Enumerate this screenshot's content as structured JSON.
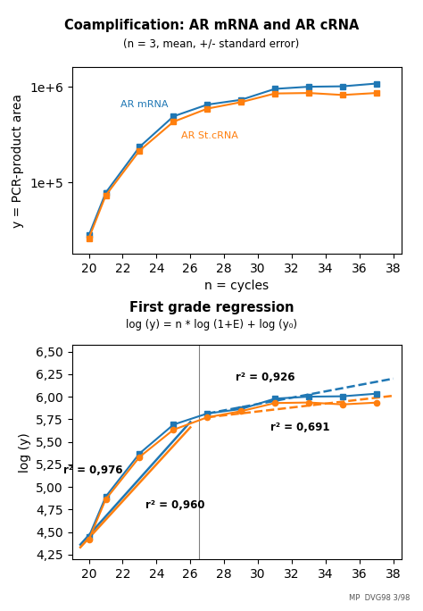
{
  "chart_data": [
    {
      "type": "line",
      "title": "Coamplification: AR mRNA and AR cRNA",
      "subtitle": "(n = 3, mean, +/- standard error)",
      "x_label": "n = cycles",
      "y_label": "y = PCR-product area",
      "log": "y",
      "xlim": [
        19.0,
        38.5
      ],
      "xticks": [
        20,
        22,
        24,
        26,
        28,
        30,
        32,
        34,
        36,
        38
      ],
      "ylim": [
        18000,
        1600000
      ],
      "yticks": [
        {
          "value": 100000,
          "label": "1e+5"
        },
        {
          "value": 1000000,
          "label": "1e+6"
        }
      ],
      "series": [
        {
          "name": "AR mRNA",
          "marker": "square",
          "line_style": "solid",
          "x": [
            20,
            21,
            23,
            25,
            27,
            29,
            31,
            33,
            35,
            37
          ],
          "values": [
            28000,
            78000,
            235000,
            490000,
            650000,
            730000,
            950000,
            1000000,
            1010000,
            1080000
          ],
          "errors": [
            1500,
            4000,
            12000,
            18000,
            22000,
            25000,
            30000,
            28000,
            22000,
            25000
          ]
        },
        {
          "name": "AR St.cRNA",
          "marker": "square",
          "line_style": "solid",
          "x": [
            20,
            21,
            23,
            25,
            27,
            29,
            31,
            33,
            35,
            37
          ],
          "values": [
            26000,
            73000,
            215000,
            430000,
            590000,
            690000,
            850000,
            860000,
            820000,
            860000
          ],
          "errors": [
            1200,
            4000,
            10000,
            15000,
            18000,
            22000,
            28000,
            25000,
            20000,
            22000
          ]
        }
      ]
    },
    {
      "type": "line",
      "title": "First grade regression",
      "subtitle": "log (y) = n * log (1+E) + log (y₀)",
      "y_label": "log (y)",
      "note": "MP  DVG98 3/98",
      "xlim": [
        19.0,
        38.5
      ],
      "xticks": [
        20,
        22,
        24,
        26,
        28,
        30,
        32,
        34,
        36,
        38
      ],
      "ylim": [
        4.2,
        6.57
      ],
      "yticks": [
        {
          "value": 4.25,
          "label": "4,25"
        },
        {
          "value": 4.5,
          "label": "4,50"
        },
        {
          "value": 4.75,
          "label": "4,75"
        },
        {
          "value": 5.0,
          "label": "5,00"
        },
        {
          "value": 5.25,
          "label": "5,25"
        },
        {
          "value": 5.5,
          "label": "5,50"
        },
        {
          "value": 5.75,
          "label": "5,75"
        },
        {
          "value": 6.0,
          "label": "6,00"
        },
        {
          "value": 6.25,
          "label": "6,25"
        },
        {
          "value": 6.5,
          "label": "6,50"
        }
      ],
      "vline": 26.5,
      "series": [
        {
          "marker": "square",
          "line_style": "solid",
          "x": [
            20,
            21,
            23,
            25,
            27,
            29,
            31,
            33,
            35,
            37
          ],
          "values": [
            4.447,
            4.892,
            5.371,
            5.69,
            5.813,
            5.863,
            5.978,
            6.0,
            6.004,
            6.033
          ]
        },
        {
          "marker": "circle",
          "line_style": "solid",
          "x": [
            20,
            21,
            23,
            25,
            27,
            29,
            31,
            33,
            35,
            37
          ],
          "values": [
            4.415,
            4.863,
            5.332,
            5.633,
            5.771,
            5.839,
            5.929,
            5.935,
            5.914,
            5.934
          ]
        },
        {
          "type": "regression",
          "line_style": "solid",
          "x": [
            19.5,
            26.0
          ],
          "values": [
            4.36,
            5.72
          ]
        },
        {
          "type": "regression",
          "line_style": "solid",
          "x": [
            19.5,
            26.0
          ],
          "values": [
            4.33,
            5.66
          ]
        },
        {
          "type": "regression",
          "line_style": "dashed",
          "x": [
            27.0,
            38.0
          ],
          "values": [
            5.813,
            6.2
          ]
        },
        {
          "type": "regression",
          "line_style": "dashed",
          "x": [
            27.0,
            38.0
          ],
          "values": [
            5.771,
            6.01
          ]
        }
      ],
      "annotations": [
        "r² = 0,976",
        "r² = 0,960",
        "r² = 0,926",
        "r² = 0,691"
      ]
    }
  ]
}
